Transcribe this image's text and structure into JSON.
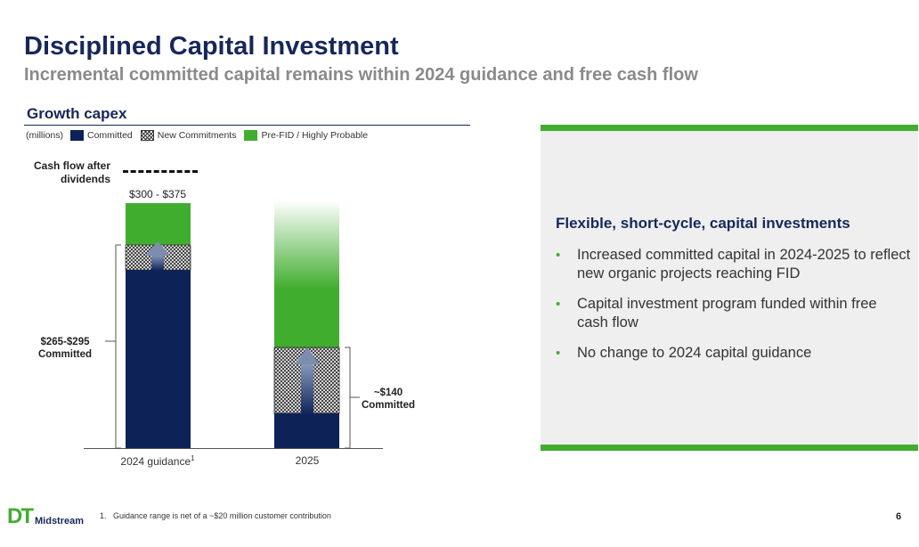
{
  "header": {
    "title": "Disciplined Capital Investment",
    "subtitle": "Incremental committed capital remains within 2024 guidance and free cash flow"
  },
  "section": {
    "heading": "Growth capex"
  },
  "legend": {
    "units": "(millions)",
    "items": [
      {
        "label": "Committed",
        "color": "#0d2257"
      },
      {
        "label": "New Commitments",
        "pattern": "hatched"
      },
      {
        "label": "Pre-FID / Highly Probable",
        "color": "#41ad2f"
      }
    ]
  },
  "chart_data": {
    "type": "bar",
    "stacked": true,
    "categories": [
      "2024 guidance",
      "2025"
    ],
    "category_superscripts": [
      "1",
      ""
    ],
    "series": [
      {
        "name": "Committed",
        "color": "#0d2257"
      },
      {
        "name": "New Commitments",
        "pattern": "hatched"
      },
      {
        "name": "Pre-FID / Highly Probable",
        "color": "#41ad2f"
      }
    ],
    "bars": [
      {
        "total_range": [
          300,
          375
        ],
        "committed_range": [
          265,
          295
        ]
      },
      {
        "committed_approx": 140
      }
    ],
    "annotations": {
      "cash_flow_label": "Cash flow after dividends",
      "range_2024": "$300 - $375",
      "committed_2024_value": "$265-$295",
      "committed_2024_word": "Committed",
      "committed_2025_value": "~$140",
      "committed_2025_word": "Committed"
    },
    "colors": {
      "navy": "#0d2257",
      "green": "#41ad2f",
      "arrow": "#5a6e96"
    }
  },
  "panel": {
    "heading": "Flexible, short-cycle, capital investments",
    "bullets": [
      "Increased committed capital in 2024-2025 to reflect new organic projects reaching FID",
      "Capital investment program funded within free cash flow",
      "No change to 2024 capital guidance"
    ],
    "accent": "#41ad2f"
  },
  "footer": {
    "footnote_marker": "1.",
    "footnote": "Guidance range is net of a ~$20 million customer contribution",
    "page_number": "6",
    "logo_letters": "DT",
    "logo_word": "Midstream"
  }
}
